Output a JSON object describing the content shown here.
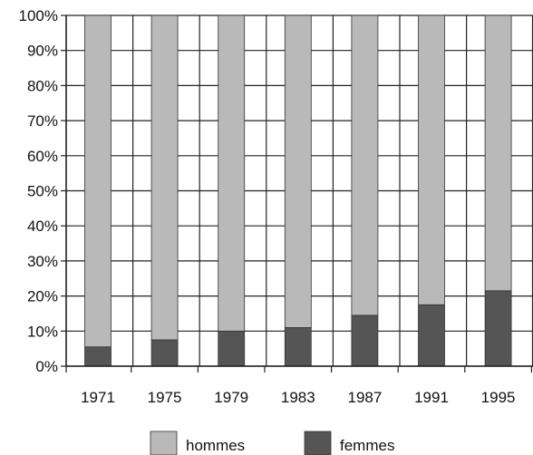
{
  "chart_data": {
    "type": "bar",
    "stacked": true,
    "normalized": true,
    "title": "",
    "xlabel": "",
    "ylabel": "",
    "ylim": [
      0,
      100
    ],
    "y_unit": "%",
    "y_ticks": [
      "0%",
      "10%",
      "20%",
      "30%",
      "40%",
      "50%",
      "60%",
      "70%",
      "80%",
      "90%",
      "100%"
    ],
    "grid": true,
    "legend_position": "bottom",
    "categories": [
      "1971",
      "1975",
      "1979",
      "1983",
      "1987",
      "1991",
      "1995"
    ],
    "series": [
      {
        "name": "femmes",
        "color": "#555555",
        "values": [
          5.5,
          7.5,
          10,
          11,
          14.5,
          17.5,
          21.5
        ]
      },
      {
        "name": "hommes",
        "color": "#b9b9b9",
        "values": [
          94.5,
          92.5,
          90,
          89,
          85.5,
          82.5,
          78.5
        ]
      }
    ],
    "legend": [
      {
        "label": "hommes",
        "color": "#b9b9b9"
      },
      {
        "label": "femmes",
        "color": "#555555"
      }
    ]
  }
}
